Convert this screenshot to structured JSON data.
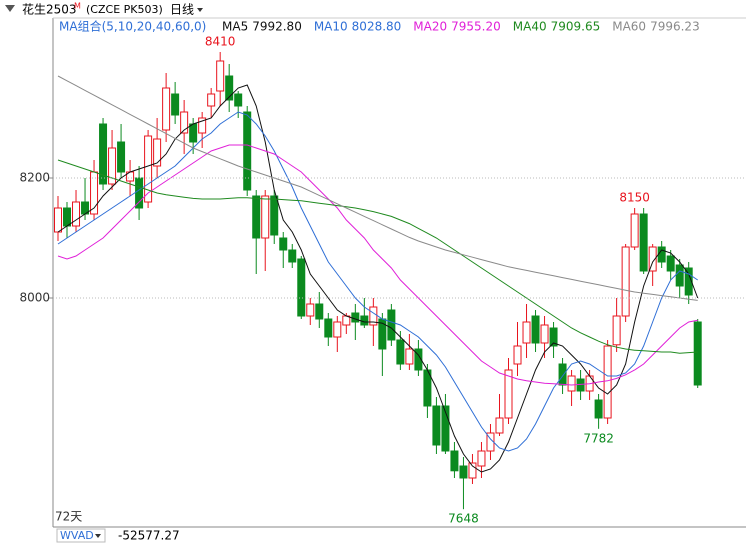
{
  "header": {
    "symbol": "花生2503",
    "badge": "M",
    "code": "(CZCE PK503)",
    "period": "日线"
  },
  "chart_data": {
    "type": "candlestick",
    "legend_title": "MA组合(5,10,20,40,60,0)",
    "up_color": "#e8141e",
    "down_color": "#0b8a1f",
    "ylim": [
      7620,
      8460
    ],
    "yticks": [
      8000,
      8200
    ],
    "grid": true,
    "open": [
      8110,
      8150,
      8120,
      8160,
      8140,
      8290,
      8190,
      8260,
      8195,
      8200,
      8160,
      8220,
      8280,
      8340,
      8275,
      8290,
      8275,
      8320,
      8345,
      8370,
      8340,
      8310,
      8170,
      8100,
      8170,
      8100,
      8080,
      8065,
      7970,
      7990,
      7965,
      7935,
      7955,
      7975,
      7970,
      7955,
      7965,
      7980,
      7930,
      7890,
      7915,
      7880,
      7820,
      7820,
      7745,
      7720,
      7700,
      7720,
      7745,
      7775,
      7800,
      7890,
      7925,
      7970,
      7925,
      7950,
      7890,
      7845,
      7865,
      7845,
      7830,
      7800,
      7922,
      7970,
      8085,
      8140,
      8045,
      8085,
      8070,
      8055,
      8050,
      7960
    ],
    "high": [
      8170,
      8160,
      8180,
      8200,
      8230,
      8300,
      8280,
      8290,
      8230,
      8220,
      8280,
      8300,
      8375,
      8360,
      8330,
      8300,
      8310,
      8350,
      8410,
      8390,
      8345,
      8320,
      8180,
      8180,
      8180,
      8110,
      8090,
      8070,
      8000,
      8010,
      7975,
      7970,
      7975,
      7990,
      8000,
      8000,
      7975,
      7990,
      7945,
      7940,
      7930,
      7890,
      7835,
      7840,
      7760,
      7735,
      7740,
      7760,
      7790,
      7840,
      7900,
      7960,
      7990,
      7980,
      7970,
      7960,
      7900,
      7880,
      7880,
      7880,
      7840,
      7930,
      8000,
      8090,
      8150,
      8150,
      8090,
      8095,
      8080,
      8065,
      8060,
      7965
    ],
    "low": [
      8095,
      8100,
      8110,
      8130,
      8130,
      8180,
      8180,
      8200,
      8170,
      8130,
      8150,
      8200,
      8260,
      8290,
      8240,
      8240,
      8250,
      8300,
      8320,
      8310,
      8300,
      8170,
      8040,
      8045,
      8090,
      8050,
      8050,
      7965,
      7955,
      7950,
      7920,
      7910,
      7940,
      7930,
      7950,
      7920,
      7870,
      7920,
      7880,
      7880,
      7870,
      7800,
      7740,
      7740,
      7700,
      7648,
      7690,
      7700,
      7730,
      7770,
      7790,
      7870,
      7900,
      7910,
      7900,
      7900,
      7840,
      7820,
      7830,
      7830,
      7782,
      7790,
      7910,
      7960,
      8080,
      8040,
      8020,
      8050,
      8030,
      8000,
      7990,
      7850
    ],
    "close": [
      8150,
      8120,
      8160,
      8140,
      8210,
      8190,
      8250,
      8210,
      8210,
      8150,
      8270,
      8265,
      8350,
      8305,
      8310,
      8260,
      8300,
      8340,
      8395,
      8330,
      8320,
      8180,
      8100,
      8170,
      8105,
      8080,
      8060,
      7970,
      7990,
      7965,
      7935,
      7960,
      7970,
      7960,
      7955,
      7985,
      7915,
      7930,
      7890,
      7915,
      7880,
      7820,
      7755,
      7745,
      7712,
      7700,
      7725,
      7745,
      7775,
      7800,
      7880,
      7920,
      7960,
      7925,
      7955,
      7920,
      7855,
      7870,
      7845,
      7870,
      7800,
      7920,
      7970,
      8085,
      8140,
      8045,
      8085,
      8060,
      8045,
      8020,
      8005,
      7855
    ],
    "series": [
      {
        "name": "MA5",
        "legend_value": "7992.80",
        "color": "#111111",
        "values": [
          8110,
          8120,
          8130,
          8140,
          8150,
          8170,
          8185,
          8200,
          8210,
          8215,
          8220,
          8225,
          8240,
          8265,
          8280,
          8290,
          8295,
          8300,
          8320,
          8335,
          8350,
          8355,
          8320,
          8260,
          8180,
          8130,
          8110,
          8080,
          8040,
          8020,
          8000,
          7980,
          7970,
          7965,
          7960,
          7960,
          7958,
          7950,
          7935,
          7920,
          7905,
          7880,
          7850,
          7810,
          7770,
          7740,
          7720,
          7710,
          7715,
          7730,
          7760,
          7800,
          7840,
          7880,
          7910,
          7925,
          7920,
          7905,
          7890,
          7870,
          7850,
          7840,
          7855,
          7890,
          7960,
          8020,
          8060,
          8080,
          8075,
          8060,
          8040,
          8000
        ]
      },
      {
        "name": "MA10",
        "legend_value": "8028.80",
        "color": "#2f6fd6",
        "values": [
          8090,
          8100,
          8110,
          8120,
          8130,
          8140,
          8150,
          8160,
          8170,
          8180,
          8190,
          8200,
          8210,
          8220,
          8235,
          8250,
          8265,
          8275,
          8290,
          8300,
          8310,
          8305,
          8290,
          8270,
          8245,
          8215,
          8185,
          8150,
          8120,
          8090,
          8060,
          8040,
          8020,
          8000,
          7985,
          7975,
          7965,
          7960,
          7955,
          7945,
          7935,
          7920,
          7905,
          7885,
          7860,
          7835,
          7810,
          7785,
          7765,
          7750,
          7745,
          7750,
          7765,
          7790,
          7820,
          7850,
          7870,
          7890,
          7895,
          7890,
          7880,
          7870,
          7870,
          7875,
          7890,
          7920,
          7960,
          8000,
          8030,
          8045,
          8040,
          8030
        ]
      },
      {
        "name": "MA20",
        "legend_value": "7955.20",
        "color": "#e020d8",
        "values": [
          8070,
          8065,
          8070,
          8080,
          8090,
          8100,
          8115,
          8130,
          8145,
          8160,
          8175,
          8185,
          8195,
          8205,
          8215,
          8225,
          8235,
          8245,
          8250,
          8255,
          8255,
          8255,
          8250,
          8245,
          8240,
          8230,
          8220,
          8210,
          8195,
          8180,
          8165,
          8150,
          8130,
          8115,
          8100,
          8080,
          8065,
          8050,
          8030,
          8015,
          8000,
          7985,
          7970,
          7955,
          7940,
          7925,
          7910,
          7895,
          7885,
          7875,
          7870,
          7865,
          7862,
          7860,
          7858,
          7857,
          7856,
          7855,
          7856,
          7857,
          7860,
          7862,
          7866,
          7872,
          7880,
          7890,
          7905,
          7920,
          7935,
          7950,
          7960,
          7963
        ]
      },
      {
        "name": "MA40",
        "legend_value": "7909.65",
        "color": "#1f8a1f",
        "values": [
          8230,
          8225,
          8220,
          8215,
          8210,
          8205,
          8200,
          8195,
          8190,
          8185,
          8180,
          8175,
          8172,
          8170,
          8168,
          8166,
          8165,
          8165,
          8165,
          8166,
          8167,
          8167,
          8166,
          8165,
          8165,
          8164,
          8163,
          8162,
          8160,
          8158,
          8156,
          8154,
          8152,
          8150,
          8147,
          8144,
          8140,
          8136,
          8130,
          8124,
          8116,
          8108,
          8100,
          8090,
          8080,
          8070,
          8060,
          8050,
          8040,
          8030,
          8020,
          8010,
          8000,
          7990,
          7980,
          7970,
          7960,
          7950,
          7942,
          7935,
          7928,
          7922,
          7918,
          7915,
          7913,
          7912,
          7911,
          7910,
          7910,
          7908,
          7909,
          7910
        ]
      },
      {
        "name": "MA60",
        "legend_value": "7996.23",
        "color": "#8a8a8a",
        "values": [
          8370,
          8362,
          8354,
          8346,
          8338,
          8330,
          8322,
          8314,
          8306,
          8298,
          8290,
          8282,
          8274,
          8266,
          8258,
          8250,
          8244,
          8238,
          8232,
          8226,
          8220,
          8215,
          8210,
          8205,
          8200,
          8195,
          8190,
          8185,
          8178,
          8171,
          8164,
          8157,
          8150,
          8143,
          8136,
          8129,
          8122,
          8115,
          8108,
          8101,
          8095,
          8090,
          8085,
          8080,
          8076,
          8072,
          8068,
          8064,
          8060,
          8056,
          8052,
          8049,
          8046,
          8043,
          8040,
          8037,
          8034,
          8031,
          8028,
          8025,
          8022,
          8019,
          8016,
          8013,
          8010,
          8008,
          8006,
          8004,
          8002,
          8000,
          7998,
          7996
        ]
      }
    ],
    "annotations": [
      {
        "value": 8410,
        "at": 18
      },
      {
        "value": 8150,
        "at": 64
      },
      {
        "value": 7648,
        "at": 45
      },
      {
        "value": 7782,
        "at": 60
      }
    ],
    "range_label": "72天"
  },
  "indicator": {
    "name": "WVAD",
    "value": "-52577.27"
  }
}
